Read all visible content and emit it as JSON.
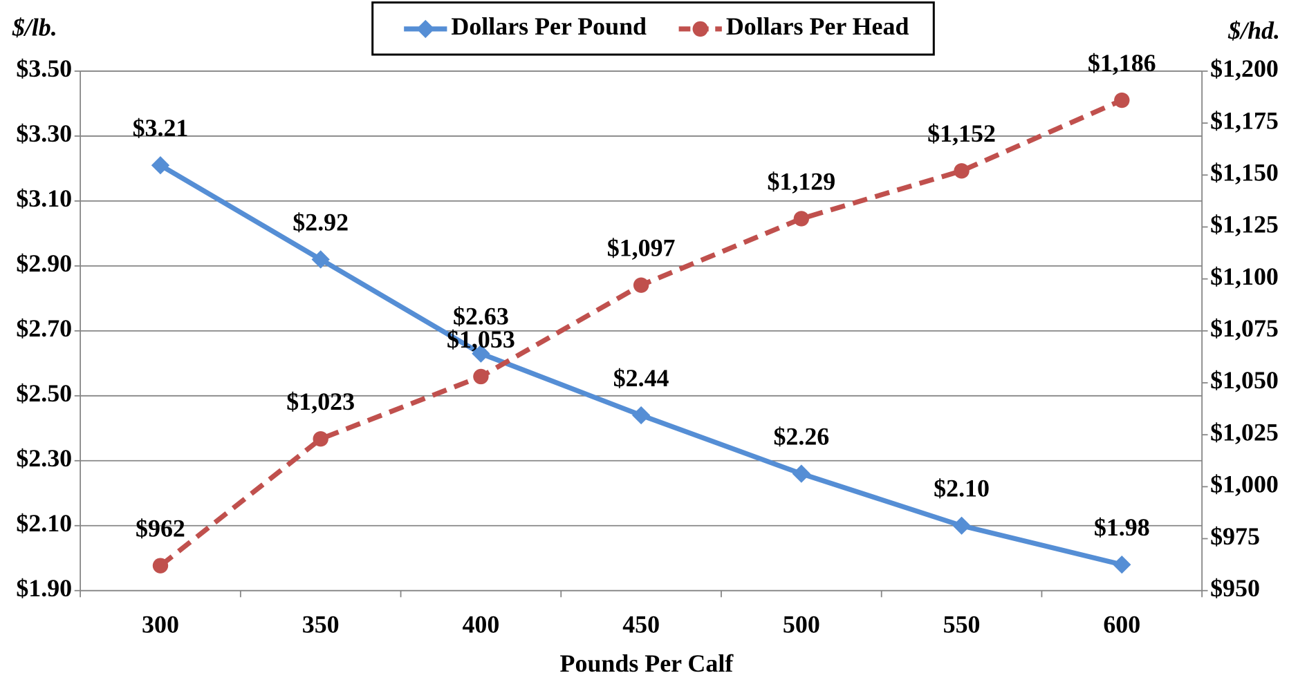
{
  "chart_data": {
    "type": "line",
    "x_label": "Pounds Per Calf",
    "y_label": "$/lb.",
    "y2_label": "$/hd.",
    "categories": [
      "300",
      "350",
      "400",
      "450",
      "500",
      "550",
      "600"
    ],
    "series": [
      {
        "name": "Dollars Per Pound",
        "color": "#558ed5",
        "marker": "diamond",
        "dashed": false,
        "values": [
          3.21,
          2.92,
          2.63,
          2.44,
          2.26,
          2.1,
          1.98
        ],
        "value_labels": [
          "$3.21",
          "$2.92",
          "$2.63",
          "$2.44",
          "$2.26",
          "$2.10",
          "$1.98"
        ]
      },
      {
        "name": "Dollars Per Head",
        "color": "#c0504d",
        "marker": "circle",
        "dashed": true,
        "axis": "y2",
        "values": [
          962,
          1023,
          1053,
          1097,
          1129,
          1152,
          1186
        ],
        "value_labels": [
          "$962",
          "$1,023",
          "$1,053",
          "$1,097",
          "$1,129",
          "$1,152",
          "$1,186"
        ]
      }
    ],
    "ylim": [
      1.9,
      3.5
    ],
    "yticks": [
      {
        "value": 1.9,
        "label": "$1.90"
      },
      {
        "value": 2.1,
        "label": "$2.10"
      },
      {
        "value": 2.3,
        "label": "$2.30"
      },
      {
        "value": 2.5,
        "label": "$2.50"
      },
      {
        "value": 2.7,
        "label": "$2.70"
      },
      {
        "value": 2.9,
        "label": "$2.90"
      },
      {
        "value": 3.1,
        "label": "$3.10"
      },
      {
        "value": 3.3,
        "label": "$3.30"
      },
      {
        "value": 3.5,
        "label": "$3.50"
      }
    ],
    "y2lim": [
      950,
      1200
    ],
    "y2ticks": [
      {
        "value": 950,
        "label": "$950"
      },
      {
        "value": 975,
        "label": "$975"
      },
      {
        "value": 1000,
        "label": "$1,000"
      },
      {
        "value": 1025,
        "label": "$1,025"
      },
      {
        "value": 1050,
        "label": "$1,050"
      },
      {
        "value": 1075,
        "label": "$1,075"
      },
      {
        "value": 1100,
        "label": "$1,100"
      },
      {
        "value": 1125,
        "label": "$1,125"
      },
      {
        "value": 1150,
        "label": "$1,150"
      },
      {
        "value": 1175,
        "label": "$1,175"
      },
      {
        "value": 1200,
        "label": "$1,200"
      }
    ],
    "grid": true,
    "legend": "top"
  }
}
